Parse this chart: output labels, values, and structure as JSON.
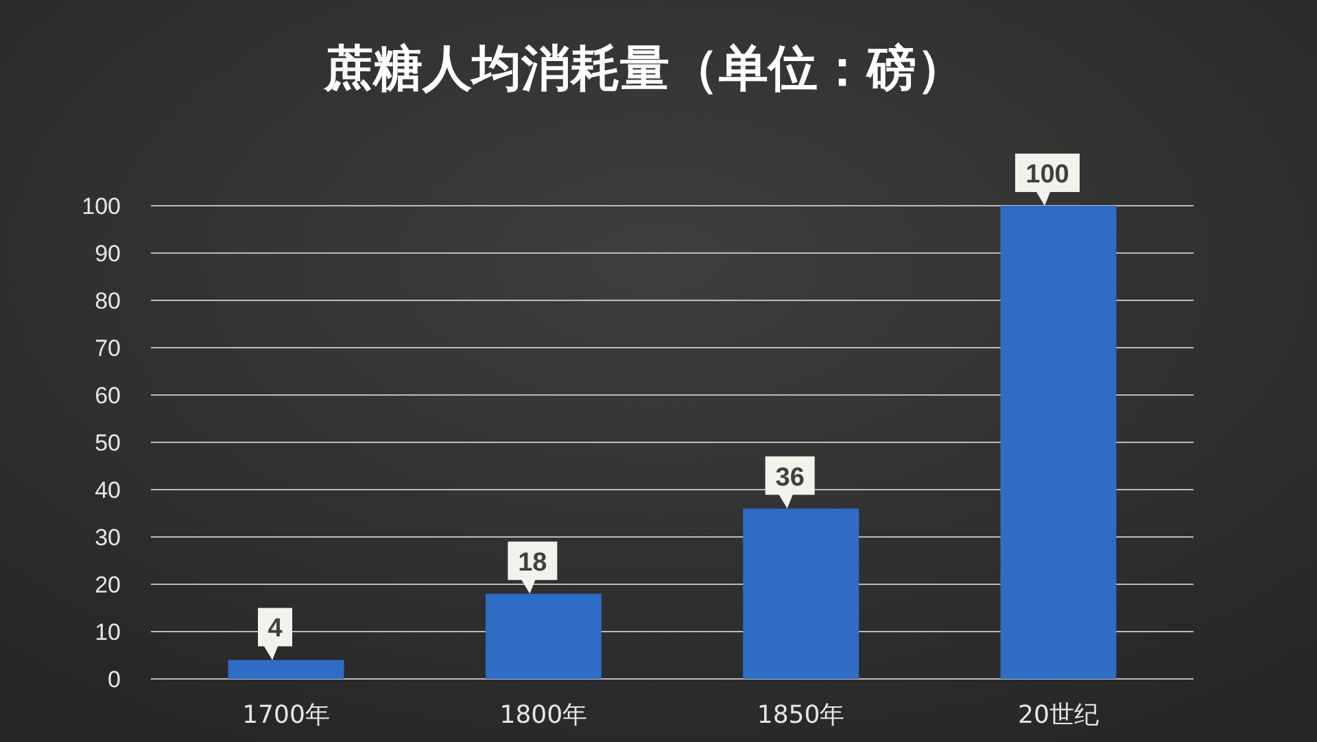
{
  "chart_data": {
    "type": "bar",
    "title": "蔗糖人均消耗量（单位：磅）",
    "categories": [
      "1700年",
      "1800年",
      "1850年",
      "20世纪"
    ],
    "values": [
      4,
      18,
      36,
      100
    ],
    "color": "#2f6cc6",
    "ylim": [
      0,
      100
    ],
    "yticks": [
      0,
      10,
      20,
      30,
      40,
      50,
      60,
      70,
      80,
      90,
      100
    ],
    "grid": "y",
    "data_labels": true
  }
}
